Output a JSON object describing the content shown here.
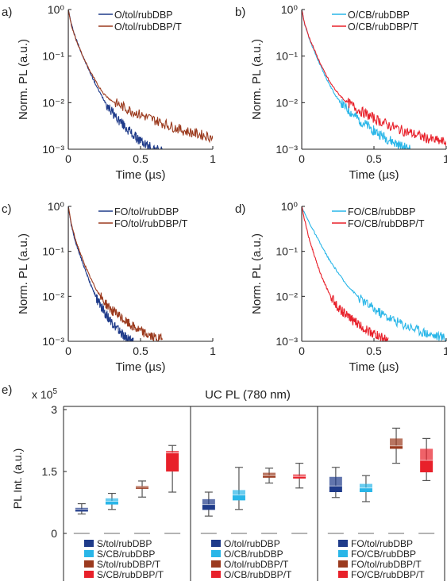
{
  "chart_data": [
    {
      "panel": "a)",
      "type": "line",
      "yscale": "log",
      "ylim": [
        0.001,
        1
      ],
      "xlim": [
        0,
        1
      ],
      "xticks": [
        "0",
        "0.5",
        "1"
      ],
      "yticks": [
        "10⁰",
        "10⁻¹",
        "10⁻²",
        "10⁻³"
      ],
      "xlabel": "Time (µs)",
      "ylabel": "Norm. PL (a.u.)",
      "series": [
        {
          "name": "O/tol/rubDBP",
          "color": "#1f3b8a",
          "x": [
            0,
            0.02,
            0.05,
            0.1,
            0.15,
            0.2,
            0.25,
            0.3,
            0.35,
            0.4,
            0.45,
            0.5,
            0.55,
            0.6,
            0.65
          ],
          "y": [
            1,
            0.5,
            0.25,
            0.1,
            0.045,
            0.021,
            0.011,
            0.0065,
            0.0042,
            0.0029,
            0.002,
            0.0015,
            0.0012,
            0.001,
            0.0009
          ]
        },
        {
          "name": "O/tol/rubDBP/T",
          "color": "#9b3a1e",
          "x": [
            0,
            0.02,
            0.05,
            0.1,
            0.15,
            0.2,
            0.25,
            0.3,
            0.4,
            0.5,
            0.6,
            0.7,
            0.8,
            0.9,
            1.0
          ],
          "y": [
            1,
            0.48,
            0.24,
            0.1,
            0.048,
            0.025,
            0.015,
            0.011,
            0.0075,
            0.0055,
            0.0042,
            0.0032,
            0.0025,
            0.0021,
            0.0018
          ]
        }
      ]
    },
    {
      "panel": "b)",
      "type": "line",
      "yscale": "log",
      "ylim": [
        0.001,
        1
      ],
      "xlim": [
        0,
        1
      ],
      "xticks": [
        "0",
        "0.5",
        "1"
      ],
      "yticks": [
        "10⁰",
        "10⁻¹",
        "10⁻²",
        "10⁻³"
      ],
      "xlabel": "Time (µs)",
      "ylabel": "Norm. PL (a.u.)",
      "series": [
        {
          "name": "O/CB/rubDBP",
          "color": "#29b6e8",
          "x": [
            0,
            0.02,
            0.05,
            0.1,
            0.15,
            0.2,
            0.25,
            0.3,
            0.4,
            0.5,
            0.6,
            0.7,
            0.75
          ],
          "y": [
            1,
            0.5,
            0.25,
            0.1,
            0.045,
            0.022,
            0.012,
            0.0078,
            0.0042,
            0.0025,
            0.0016,
            0.0011,
            0.001
          ]
        },
        {
          "name": "O/CB/rubDBP/T",
          "color": "#e8202a",
          "x": [
            0,
            0.02,
            0.05,
            0.1,
            0.15,
            0.2,
            0.25,
            0.3,
            0.4,
            0.5,
            0.6,
            0.7,
            0.8,
            0.9,
            1.0
          ],
          "y": [
            1,
            0.5,
            0.26,
            0.11,
            0.05,
            0.026,
            0.016,
            0.011,
            0.0068,
            0.0046,
            0.0033,
            0.0025,
            0.002,
            0.0016,
            0.0014
          ]
        }
      ]
    },
    {
      "panel": "c)",
      "type": "line",
      "yscale": "log",
      "ylim": [
        0.001,
        1
      ],
      "xlim": [
        0,
        1
      ],
      "xticks": [
        "0",
        "0.5",
        "1"
      ],
      "yticks": [
        "10⁰",
        "10⁻¹",
        "10⁻²",
        "10⁻³"
      ],
      "xlabel": "Time (µs)",
      "ylabel": "Norm. PL (a.u.)",
      "series": [
        {
          "name": "FO/tol/rubDBP",
          "color": "#1f3b8a",
          "x": [
            0,
            0.02,
            0.05,
            0.1,
            0.15,
            0.2,
            0.25,
            0.3,
            0.35,
            0.4,
            0.45
          ],
          "y": [
            1,
            0.4,
            0.16,
            0.055,
            0.02,
            0.0085,
            0.0045,
            0.0027,
            0.0017,
            0.0012,
            0.001
          ]
        },
        {
          "name": "FO/tol/rubDBP/T",
          "color": "#9b3a1e",
          "x": [
            0,
            0.02,
            0.05,
            0.1,
            0.15,
            0.2,
            0.25,
            0.3,
            0.35,
            0.4,
            0.45,
            0.5,
            0.55,
            0.6,
            0.65
          ],
          "y": [
            1,
            0.42,
            0.18,
            0.065,
            0.027,
            0.013,
            0.0075,
            0.005,
            0.0036,
            0.0027,
            0.0021,
            0.0017,
            0.0014,
            0.0012,
            0.0011
          ]
        }
      ]
    },
    {
      "panel": "d)",
      "type": "line",
      "yscale": "log",
      "ylim": [
        0.001,
        1
      ],
      "xlim": [
        0,
        1
      ],
      "xticks": [
        "0",
        "0.5",
        "1"
      ],
      "yticks": [
        "10⁰",
        "10⁻¹",
        "10⁻²",
        "10⁻³"
      ],
      "xlabel": "Time (µs)",
      "ylabel": "Norm. PL (a.u.)",
      "series": [
        {
          "name": "FO/CB/rubDBP",
          "color": "#29b6e8",
          "x": [
            0,
            0.02,
            0.05,
            0.1,
            0.15,
            0.2,
            0.3,
            0.4,
            0.5,
            0.6,
            0.7,
            0.8,
            0.9,
            1.0
          ],
          "y": [
            1,
            0.7,
            0.45,
            0.22,
            0.11,
            0.058,
            0.02,
            0.009,
            0.0052,
            0.0034,
            0.0024,
            0.0018,
            0.0014,
            0.0012
          ]
        },
        {
          "name": "FO/CB/rubDBP/T",
          "color": "#e8202a",
          "x": [
            0,
            0.02,
            0.05,
            0.1,
            0.15,
            0.2,
            0.25,
            0.3,
            0.35,
            0.4,
            0.45,
            0.5,
            0.55,
            0.6
          ],
          "y": [
            1,
            0.5,
            0.2,
            0.06,
            0.022,
            0.01,
            0.0058,
            0.004,
            0.003,
            0.0023,
            0.0018,
            0.0015,
            0.0012,
            0.001
          ]
        }
      ]
    },
    {
      "panel": "e)",
      "type": "box",
      "title": "UC PL (780 nm)",
      "ylabel": "PL Int. (a.u.)",
      "yfactor": "x 10",
      "yfactor_exp": "5",
      "ylim": [
        -0.5,
        3
      ],
      "yticks": [
        "0",
        "1.5",
        "3"
      ],
      "groups": [
        {
          "boxes": [
            {
              "name": "S/tol/rubDBP",
              "color": "#1f3b8a",
              "whisker_low": 0.47,
              "q1": 0.53,
              "median": 0.58,
              "q3": 0.62,
              "whisker_high": 0.72
            },
            {
              "name": "S/CB/rubDBP",
              "color": "#29b6e8",
              "whisker_low": 0.58,
              "q1": 0.7,
              "median": 0.78,
              "q3": 0.85,
              "whisker_high": 0.97
            },
            {
              "name": "S/tol/rubDBP/T",
              "color": "#9b3a1e",
              "whisker_low": 0.88,
              "q1": 1.08,
              "median": 1.12,
              "q3": 1.15,
              "whisker_high": 1.27
            },
            {
              "name": "S/CB/rubDBP/T",
              "color": "#e8202a",
              "whisker_low": 1.0,
              "q1": 1.5,
              "median": 1.95,
              "q3": 2.0,
              "whisker_high": 2.13
            }
          ]
        },
        {
          "boxes": [
            {
              "name": "O/tol/rubDBP",
              "color": "#1f3b8a",
              "whisker_low": 0.42,
              "q1": 0.57,
              "median": 0.7,
              "q3": 0.83,
              "whisker_high": 1.0
            },
            {
              "name": "O/CB/rubDBP",
              "color": "#29b6e8",
              "whisker_low": 0.58,
              "q1": 0.8,
              "median": 0.93,
              "q3": 1.05,
              "whisker_high": 1.6
            },
            {
              "name": "O/tol/rubDBP/T",
              "color": "#9b3a1e",
              "whisker_low": 1.22,
              "q1": 1.35,
              "median": 1.4,
              "q3": 1.47,
              "whisker_high": 1.58
            },
            {
              "name": "O/CB/rubDBP/T",
              "color": "#e8202a",
              "whisker_low": 1.1,
              "q1": 1.33,
              "median": 1.38,
              "q3": 1.43,
              "whisker_high": 1.7
            }
          ]
        },
        {
          "boxes": [
            {
              "name": "FO/tol/rubDBP",
              "color": "#1f3b8a",
              "whisker_low": 0.87,
              "q1": 1.0,
              "median": 1.15,
              "q3": 1.37,
              "whisker_high": 1.6
            },
            {
              "name": "FO/CB/rubDBP",
              "color": "#29b6e8",
              "whisker_low": 0.77,
              "q1": 1.0,
              "median": 1.1,
              "q3": 1.2,
              "whisker_high": 1.4
            },
            {
              "name": "FO/tol/rubDBP/T",
              "color": "#9b3a1e",
              "whisker_low": 1.7,
              "q1": 2.05,
              "median": 2.12,
              "q3": 2.3,
              "whisker_high": 2.55
            },
            {
              "name": "FO/CB/rubDBP/T",
              "color": "#e8202a",
              "whisker_low": 1.28,
              "q1": 1.48,
              "median": 1.77,
              "q3": 2.05,
              "whisker_high": 2.3
            }
          ]
        }
      ],
      "grid": false,
      "legend": "bottom of each group",
      "reference_line": 0
    }
  ]
}
